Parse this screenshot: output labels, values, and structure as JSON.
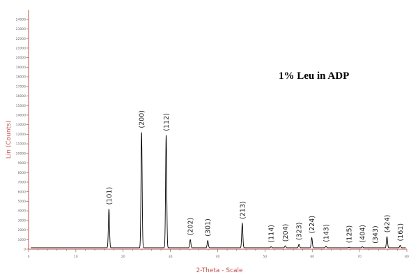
{
  "chart_data": {
    "type": "line",
    "title": "1% Leu in ADP",
    "xlabel": "2-Theta - Scale",
    "ylabel": "Lin (Counts)",
    "xlim": [
      0,
      80
    ],
    "ylim": [
      0,
      25000
    ],
    "x_ticks": [
      0,
      10,
      20,
      30,
      40,
      50,
      60,
      70,
      80
    ],
    "x_tick_labels": [
      "0",
      "10",
      "20",
      "30",
      "40",
      "50",
      "60",
      "70",
      "80"
    ],
    "y_ticks": [
      0,
      1000,
      2000,
      3000,
      4000,
      5000,
      6000,
      7000,
      8000,
      9000,
      10000,
      11000,
      12000,
      13000,
      14000,
      15000,
      16000,
      17000,
      18000,
      19000,
      20000,
      21000,
      22000,
      23000,
      24000
    ],
    "y_tick_labels": [
      "0",
      "1000",
      "2000",
      "3000",
      "4000",
      "5000",
      "6000",
      "7000",
      "8000",
      "9000",
      "10000",
      "11000",
      "12000",
      "13000",
      "14000",
      "15000",
      "16000",
      "17000",
      "18000",
      "19000",
      "20000",
      "21000",
      "22000",
      "23000",
      "24000"
    ],
    "baseline": 150,
    "peaks": [
      {
        "hkl": "(101)",
        "x": 17.0,
        "y": 4200
      },
      {
        "hkl": "(200)",
        "x": 23.9,
        "y": 12200
      },
      {
        "hkl": "(112)",
        "x": 29.1,
        "y": 11900
      },
      {
        "hkl": "(202)",
        "x": 34.2,
        "y": 1000
      },
      {
        "hkl": "(301)",
        "x": 37.9,
        "y": 900
      },
      {
        "hkl": "(213)",
        "x": 45.2,
        "y": 2700
      },
      {
        "hkl": "(114)",
        "x": 51.3,
        "y": 250
      },
      {
        "hkl": "(204)",
        "x": 54.3,
        "y": 350
      },
      {
        "hkl": "(323)",
        "x": 57.2,
        "y": 500
      },
      {
        "hkl": "(224)",
        "x": 59.9,
        "y": 1200
      },
      {
        "hkl": "(143)",
        "x": 62.9,
        "y": 300
      },
      {
        "hkl": "(125)",
        "x": 67.8,
        "y": 200
      },
      {
        "hkl": "(404)",
        "x": 70.6,
        "y": 250
      },
      {
        "hkl": "(343)",
        "x": 73.3,
        "y": 150
      },
      {
        "hkl": "(424)",
        "x": 75.8,
        "y": 1300
      },
      {
        "hkl": "(161)",
        "x": 78.6,
        "y": 400
      }
    ],
    "colors": {
      "axis": "#c0504d",
      "trace": "#000000",
      "tick_label": "#666666"
    }
  }
}
